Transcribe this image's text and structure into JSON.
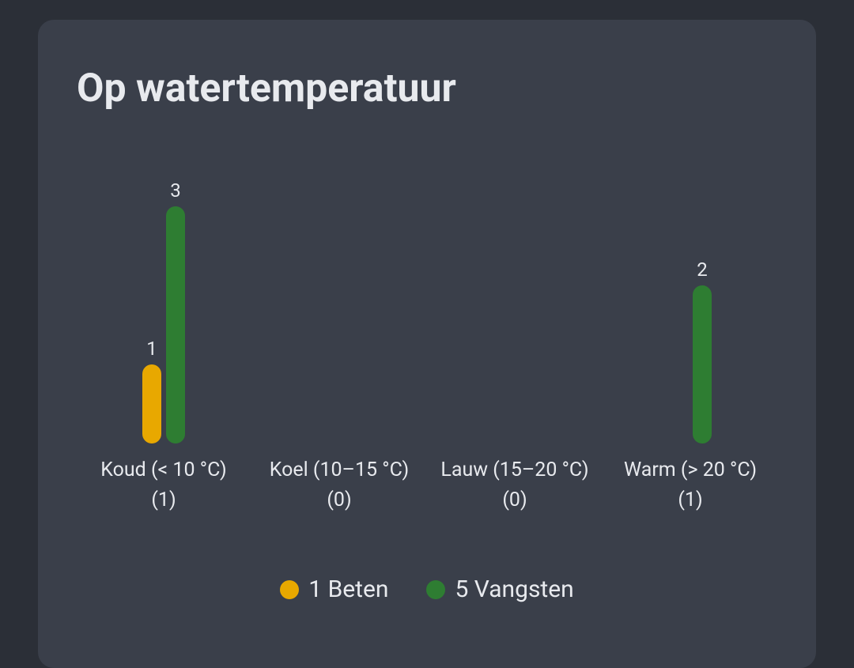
{
  "chart_data": {
    "type": "bar",
    "title": "Op watertemperatuur",
    "categories": [
      "Koud (< 10 °C)",
      "Koel (10–15 °C)",
      "Lauw (15–20 °C)",
      "Warm (> 20 °C)"
    ],
    "category_notes": [
      "(1)",
      "(0)",
      "(0)",
      "(1)"
    ],
    "series": [
      {
        "name": "1 Beten",
        "color": "#e8a800",
        "values": [
          1,
          null,
          null,
          null
        ]
      },
      {
        "name": "5 Vangsten",
        "color": "#2e7d32",
        "values": [
          3,
          null,
          null,
          2
        ]
      }
    ]
  }
}
